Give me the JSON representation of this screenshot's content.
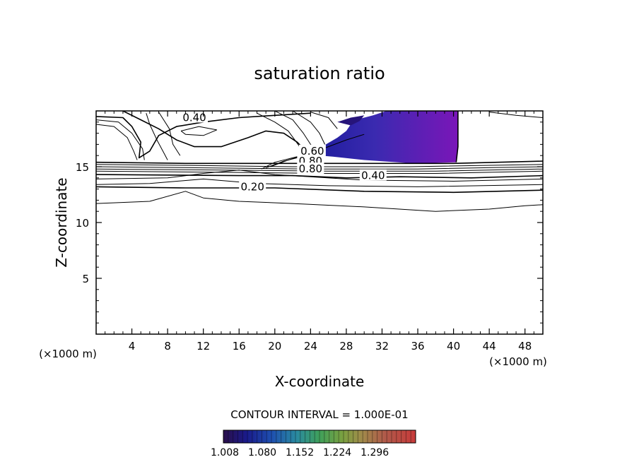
{
  "chart_data": {
    "type": "contour",
    "title": "saturation ratio",
    "xlabel": "X-coordinate",
    "ylabel": "Z-coordinate",
    "x_unit_left": "(×1000 m)",
    "x_unit_right": "(×1000 m)",
    "xlim": [
      0,
      50
    ],
    "ylim": [
      0,
      20
    ],
    "x_ticks": [
      4,
      8,
      12,
      16,
      20,
      24,
      28,
      32,
      36,
      40,
      44,
      48
    ],
    "y_ticks": [
      5,
      10,
      15
    ],
    "contour_interval_text": "CONTOUR INTERVAL = 1.000E-01",
    "contour_labels": [
      {
        "text": "0.40",
        "x": 11.0,
        "z": 19.4
      },
      {
        "text": "0.60",
        "x": 24.2,
        "z": 16.4
      },
      {
        "text": "0.80",
        "x": 24.0,
        "z": 15.5
      },
      {
        "text": "0.80",
        "x": 24.0,
        "z": 14.8
      },
      {
        "text": "0.40",
        "x": 31.0,
        "z": 14.2
      },
      {
        "text": "0.20",
        "x": 17.5,
        "z": 13.2
      }
    ],
    "shaded_region": {
      "description_value_min": 1.008,
      "description_value_max": 1.296
    },
    "colorbar": {
      "tick_labels": [
        "1.008",
        "1.080",
        "1.152",
        "1.224",
        "1.296"
      ],
      "vmin": 1.008,
      "vmax": 1.296
    },
    "grid": false
  }
}
